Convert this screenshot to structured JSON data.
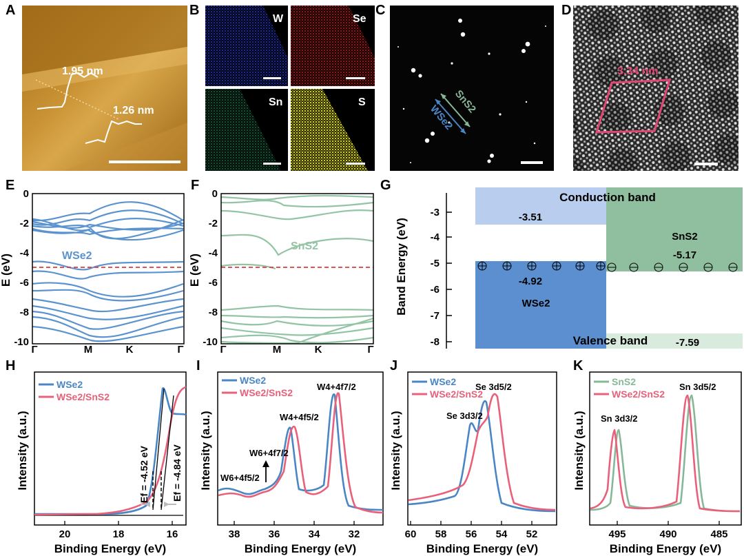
{
  "panel_labels": [
    "A",
    "B",
    "C",
    "D",
    "E",
    "F",
    "G",
    "H",
    "I",
    "J",
    "K"
  ],
  "afm": {
    "step1": "1.95 nm",
    "step2": "1.26 nm"
  },
  "eds": {
    "w": "W",
    "se": "Se",
    "sn": "Sn",
    "s": "S"
  },
  "saed": {
    "sns2": "SnS2",
    "wse2": "WSe2"
  },
  "stem": {
    "moire": "3.34 nm"
  },
  "bands": {
    "ylabel": "E (eV)",
    "ticks": [
      "0",
      "-2",
      "-4",
      "-6",
      "-8",
      "-10"
    ],
    "kpoints": [
      "Γ",
      "M",
      "K",
      "Γ"
    ],
    "wse2_label": "WSe2",
    "sns2_label": "SnS2"
  },
  "alignment": {
    "ylabel": "Band Energy (eV)",
    "ticks": [
      "-3",
      "-4",
      "-5",
      "-6",
      "-7",
      "-8"
    ],
    "conduction": "Conduction band",
    "valence": "Valence band",
    "wse2": "WSe2",
    "sns2": "SnS2",
    "wse2_cb": "-3.51",
    "wse2_vb": "-4.92",
    "sns2_fermi": "-5.17",
    "sns2_vb": "-7.59",
    "colors": {
      "wse2_cb": "#b9cdee",
      "wse2_vb": "#5b8fd0",
      "sns2_cb": "#8fbf9f",
      "sns2_vb": "#d8ebdc"
    }
  },
  "xps": {
    "ylabel": "Intensity (a.u.)",
    "xlabel": "Binding Energy (eV)",
    "H": {
      "legend": [
        "WSe2",
        "WSe2/SnS2"
      ],
      "xticks": [
        "20",
        "18",
        "16"
      ],
      "ef1": "Ef = -4.52 eV",
      "ef2": "Ef = -4.84 eV"
    },
    "I": {
      "legend": [
        "WSe2",
        "WSe2/SnS2"
      ],
      "xticks": [
        "38",
        "36",
        "34",
        "32"
      ],
      "peaks": [
        "W6+4f5/2",
        "W6+4f7/2",
        "W4+4f5/2",
        "W4+4f7/2"
      ]
    },
    "J": {
      "legend": [
        "WSe2",
        "WSe2/SnS2"
      ],
      "xticks": [
        "60",
        "58",
        "56",
        "54",
        "52"
      ],
      "peaks": [
        "Se 3d3/2",
        "Se 3d5/2"
      ]
    },
    "K": {
      "legend": [
        "SnS2",
        "WSe2/SnS2"
      ],
      "xticks": [
        "495",
        "490",
        "485"
      ],
      "peaks": [
        "Sn 3d3/2",
        "Sn 3d5/2"
      ]
    },
    "colors": {
      "blue": "#4a86c6",
      "pink": "#e8607a",
      "green": "#86b897"
    }
  }
}
